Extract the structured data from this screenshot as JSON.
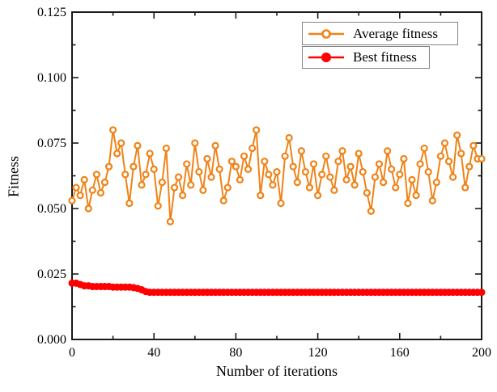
{
  "figure": {
    "background_color": "#ffffff",
    "frame_color": "#1a1a1a"
  },
  "chart_data": {
    "type": "line",
    "title": "",
    "xlabel": "Number of iterations",
    "ylabel": "Fitness",
    "xlim": [
      0,
      200
    ],
    "ylim": [
      0,
      0.125
    ],
    "x_major_ticks": [
      0,
      40,
      80,
      120,
      160,
      200
    ],
    "x_minor_ticks": [
      20,
      60,
      100,
      140,
      180
    ],
    "y_major_ticks": [
      0.0,
      0.025,
      0.05,
      0.075,
      0.1,
      0.125
    ],
    "y_minor_ticks": [
      0.0125,
      0.0375,
      0.0625,
      0.0875,
      0.1125
    ],
    "y_tick_decimals": 3,
    "grid": false,
    "legend_position": "top-right-inside",
    "x": [
      0,
      2,
      4,
      6,
      8,
      10,
      12,
      14,
      16,
      18,
      20,
      22,
      24,
      26,
      28,
      30,
      32,
      34,
      36,
      38,
      40,
      42,
      44,
      46,
      48,
      50,
      52,
      54,
      56,
      58,
      60,
      62,
      64,
      66,
      68,
      70,
      72,
      74,
      76,
      78,
      80,
      82,
      84,
      86,
      88,
      90,
      92,
      94,
      96,
      98,
      100,
      102,
      104,
      106,
      108,
      110,
      112,
      114,
      116,
      118,
      120,
      122,
      124,
      126,
      128,
      130,
      132,
      134,
      136,
      138,
      140,
      142,
      144,
      146,
      148,
      150,
      152,
      154,
      156,
      158,
      160,
      162,
      164,
      166,
      168,
      170,
      172,
      174,
      176,
      178,
      180,
      182,
      184,
      186,
      188,
      190,
      192,
      194,
      196,
      198,
      200
    ],
    "series": [
      {
        "name": "Average fitness",
        "color": "#EF8318",
        "marker": "open-circle",
        "marker_fill": "#ffffff",
        "values": [
          0.053,
          0.058,
          0.055,
          0.061,
          0.05,
          0.057,
          0.063,
          0.056,
          0.06,
          0.066,
          0.08,
          0.071,
          0.075,
          0.063,
          0.052,
          0.066,
          0.074,
          0.059,
          0.063,
          0.071,
          0.065,
          0.051,
          0.06,
          0.073,
          0.045,
          0.058,
          0.062,
          0.055,
          0.067,
          0.059,
          0.075,
          0.064,
          0.057,
          0.069,
          0.062,
          0.074,
          0.065,
          0.053,
          0.058,
          0.068,
          0.066,
          0.061,
          0.07,
          0.065,
          0.073,
          0.08,
          0.055,
          0.068,
          0.063,
          0.059,
          0.064,
          0.052,
          0.07,
          0.077,
          0.066,
          0.06,
          0.072,
          0.064,
          0.058,
          0.067,
          0.055,
          0.063,
          0.07,
          0.062,
          0.057,
          0.068,
          0.072,
          0.061,
          0.066,
          0.059,
          0.071,
          0.064,
          0.056,
          0.049,
          0.062,
          0.067,
          0.06,
          0.072,
          0.065,
          0.058,
          0.063,
          0.069,
          0.052,
          0.061,
          0.055,
          0.067,
          0.073,
          0.064,
          0.053,
          0.06,
          0.07,
          0.075,
          0.068,
          0.062,
          0.078,
          0.071,
          0.058,
          0.066,
          0.074,
          0.069,
          0.069
        ]
      },
      {
        "name": "Best fitness",
        "color": "#FF0000",
        "marker": "filled-circle",
        "marker_fill": "#FF0000",
        "values": [
          0.0215,
          0.0215,
          0.021,
          0.0205,
          0.0205,
          0.0202,
          0.0202,
          0.0202,
          0.0202,
          0.0202,
          0.02,
          0.02,
          0.02,
          0.02,
          0.02,
          0.0198,
          0.0195,
          0.019,
          0.0183,
          0.018,
          0.018,
          0.018,
          0.018,
          0.018,
          0.018,
          0.018,
          0.018,
          0.018,
          0.018,
          0.018,
          0.018,
          0.018,
          0.018,
          0.018,
          0.018,
          0.018,
          0.018,
          0.018,
          0.018,
          0.018,
          0.018,
          0.018,
          0.018,
          0.018,
          0.018,
          0.018,
          0.018,
          0.018,
          0.018,
          0.018,
          0.018,
          0.018,
          0.018,
          0.018,
          0.018,
          0.018,
          0.018,
          0.018,
          0.018,
          0.018,
          0.018,
          0.018,
          0.018,
          0.018,
          0.018,
          0.018,
          0.018,
          0.018,
          0.018,
          0.018,
          0.018,
          0.018,
          0.018,
          0.018,
          0.018,
          0.018,
          0.018,
          0.018,
          0.018,
          0.018,
          0.018,
          0.018,
          0.018,
          0.018,
          0.018,
          0.018,
          0.018,
          0.018,
          0.018,
          0.018,
          0.018,
          0.018,
          0.018,
          0.018,
          0.018,
          0.018,
          0.018,
          0.018,
          0.018,
          0.018,
          0.018
        ]
      }
    ]
  },
  "legend": {
    "entries": [
      {
        "label": "Average fitness",
        "series_index": 0
      },
      {
        "label": "Best fitness",
        "series_index": 1
      }
    ]
  }
}
